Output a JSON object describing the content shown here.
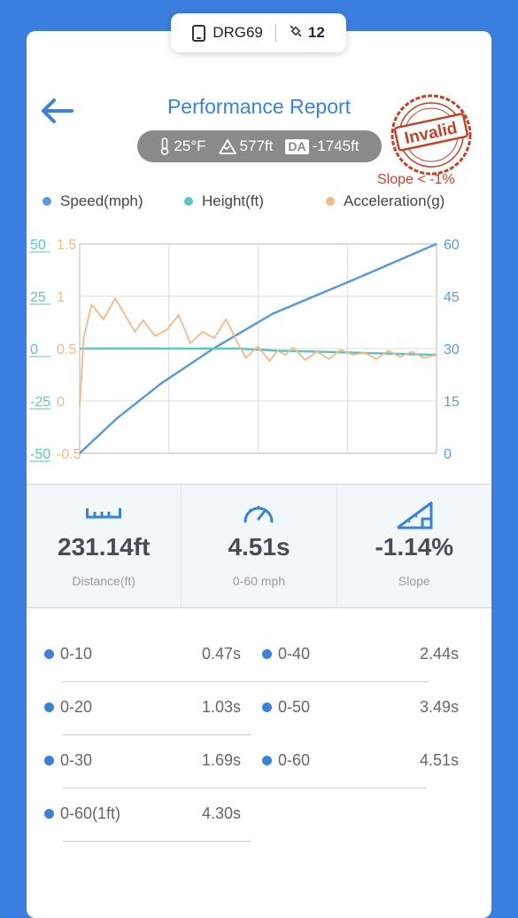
{
  "device": {
    "name": "DRG69",
    "icon": "phone-icon",
    "satellite_icon": "satellite-icon",
    "satellites": "12"
  },
  "header": {
    "back_icon": "back-arrow-icon",
    "title": "Performance Report"
  },
  "conditions": {
    "temperature": "25°F",
    "altitude": "577ft",
    "da_label": "DA",
    "density_altitude": "-1745ft"
  },
  "stamp": {
    "text": "Invalid",
    "note": "Slope < -1%"
  },
  "legend": [
    {
      "label": "Speed(mph)",
      "color": "#5b9bd5"
    },
    {
      "label": "Height(ft)",
      "color": "#5ec4c2"
    },
    {
      "label": "Acceleration(g)",
      "color": "#f0b98a"
    }
  ],
  "chart_data": {
    "type": "line",
    "x_ticks": [
      "",
      "",
      "",
      ""
    ],
    "axes": {
      "height_ticks": [
        "50",
        "25",
        "0",
        "-25",
        "-50"
      ],
      "accel_ticks": [
        "1.5",
        "1",
        "0.5",
        "0",
        "-0.5"
      ],
      "speed_ticks": [
        "60",
        "45",
        "30",
        "15",
        "0"
      ],
      "height_range": [
        -50,
        50
      ],
      "accel_range": [
        -0.5,
        1.5
      ],
      "speed_range": [
        0,
        60
      ]
    },
    "series": [
      {
        "name": "Speed(mph)",
        "color": "#5b9bd5",
        "x": [
          0,
          0.47,
          1.03,
          1.69,
          2.44,
          3.49,
          4.51
        ],
        "values": [
          0,
          10,
          20,
          30,
          40,
          50,
          60
        ]
      },
      {
        "name": "Height(ft)",
        "color": "#5ec4c2",
        "x": [
          0,
          0.5,
          1,
          1.5,
          2,
          2.5,
          3,
          3.5,
          4,
          4.51
        ],
        "values": [
          0,
          0,
          0,
          0,
          0,
          -1,
          -1.5,
          -2,
          -2.5,
          -3
        ]
      },
      {
        "name": "Acceleration(g)",
        "color": "#f0b98a",
        "x": [
          0,
          0.05,
          0.15,
          0.3,
          0.45,
          0.55,
          0.7,
          0.8,
          0.95,
          1.1,
          1.25,
          1.4,
          1.55,
          1.7,
          1.85,
          2.0,
          2.1,
          2.25,
          2.4,
          2.5,
          2.6,
          2.7,
          2.85,
          3.0,
          3.15,
          3.3,
          3.45,
          3.6,
          3.75,
          3.9,
          4.05,
          4.2,
          4.35,
          4.51
        ],
        "values": [
          -0.05,
          0.6,
          0.92,
          0.78,
          0.98,
          0.85,
          0.66,
          0.77,
          0.62,
          0.68,
          0.82,
          0.55,
          0.66,
          0.6,
          0.78,
          0.55,
          0.41,
          0.52,
          0.38,
          0.48,
          0.44,
          0.51,
          0.39,
          0.47,
          0.4,
          0.49,
          0.44,
          0.46,
          0.4,
          0.48,
          0.42,
          0.47,
          0.41,
          0.44
        ]
      }
    ]
  },
  "stats": [
    {
      "icon": "ruler-icon",
      "value": "231.14ft",
      "label": "Distance(ft)"
    },
    {
      "icon": "speedometer-icon",
      "value": "4.51s",
      "label": "0-60 mph"
    },
    {
      "icon": "slope-icon",
      "value": "-1.14%",
      "label": "Slope"
    }
  ],
  "splits": [
    {
      "name": "0-10",
      "time": "0.47s"
    },
    {
      "name": "0-40",
      "time": "2.44s"
    },
    {
      "name": "0-20",
      "time": "1.03s"
    },
    {
      "name": "0-50",
      "time": "3.49s"
    },
    {
      "name": "0-30",
      "time": "1.69s"
    },
    {
      "name": "0-60",
      "time": "4.51s"
    },
    {
      "name": "0-60(1ft)",
      "time": "4.30s"
    }
  ]
}
